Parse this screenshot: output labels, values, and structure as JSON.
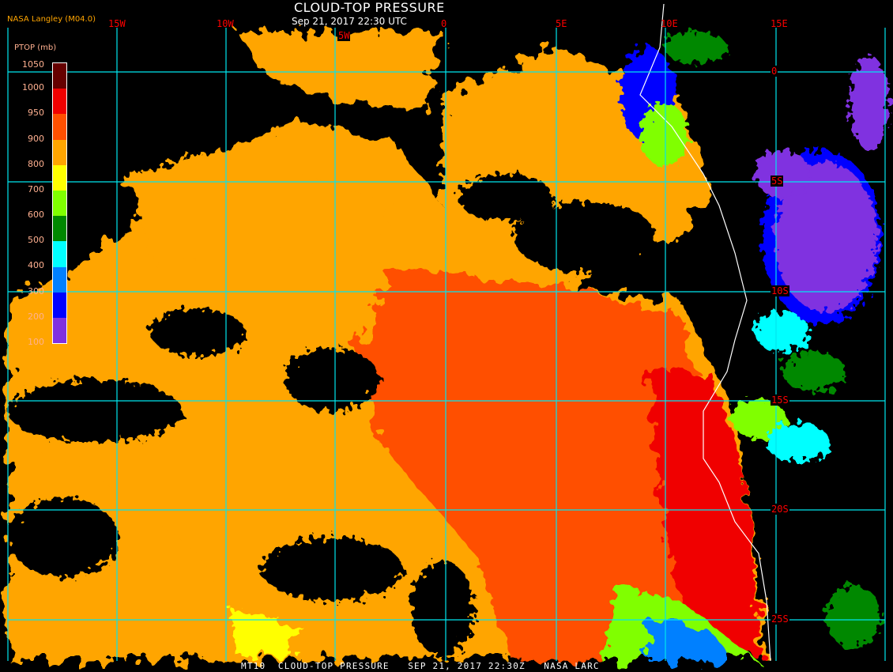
{
  "header": {
    "title": "CLOUD-TOP PRESSURE",
    "subtitle": "Sep 21, 2017 22:30 UTC",
    "credit": "NASA Langley (M04.0)"
  },
  "footer": {
    "text": "MT10  CLOUD-TOP PRESSURE   SEP 21, 2017 22:30Z   NASA LARC"
  },
  "map": {
    "longitude_labels": [
      "15W",
      "10W",
      "5W",
      "0",
      "5E",
      "10E",
      "15E"
    ],
    "latitude_labels": [
      "0",
      "5S",
      "10S",
      "15S",
      "20S",
      "25S"
    ],
    "grid_color": "#00e5ee",
    "label_color": "#ff0000",
    "coastline_color": "#ffffff"
  },
  "legend": {
    "title": "PTOP (mb)",
    "ticks": [
      "1050",
      "1000",
      "950",
      "900",
      "800",
      "700",
      "600",
      "500",
      "400",
      "300",
      "200",
      "100"
    ],
    "colors": [
      "#660000",
      "#f00000",
      "#ff5000",
      "#ffa500",
      "#ffff00",
      "#80ff00",
      "#008800",
      "#00ffff",
      "#0080ff",
      "#0000ff",
      "#8030e0"
    ]
  }
}
